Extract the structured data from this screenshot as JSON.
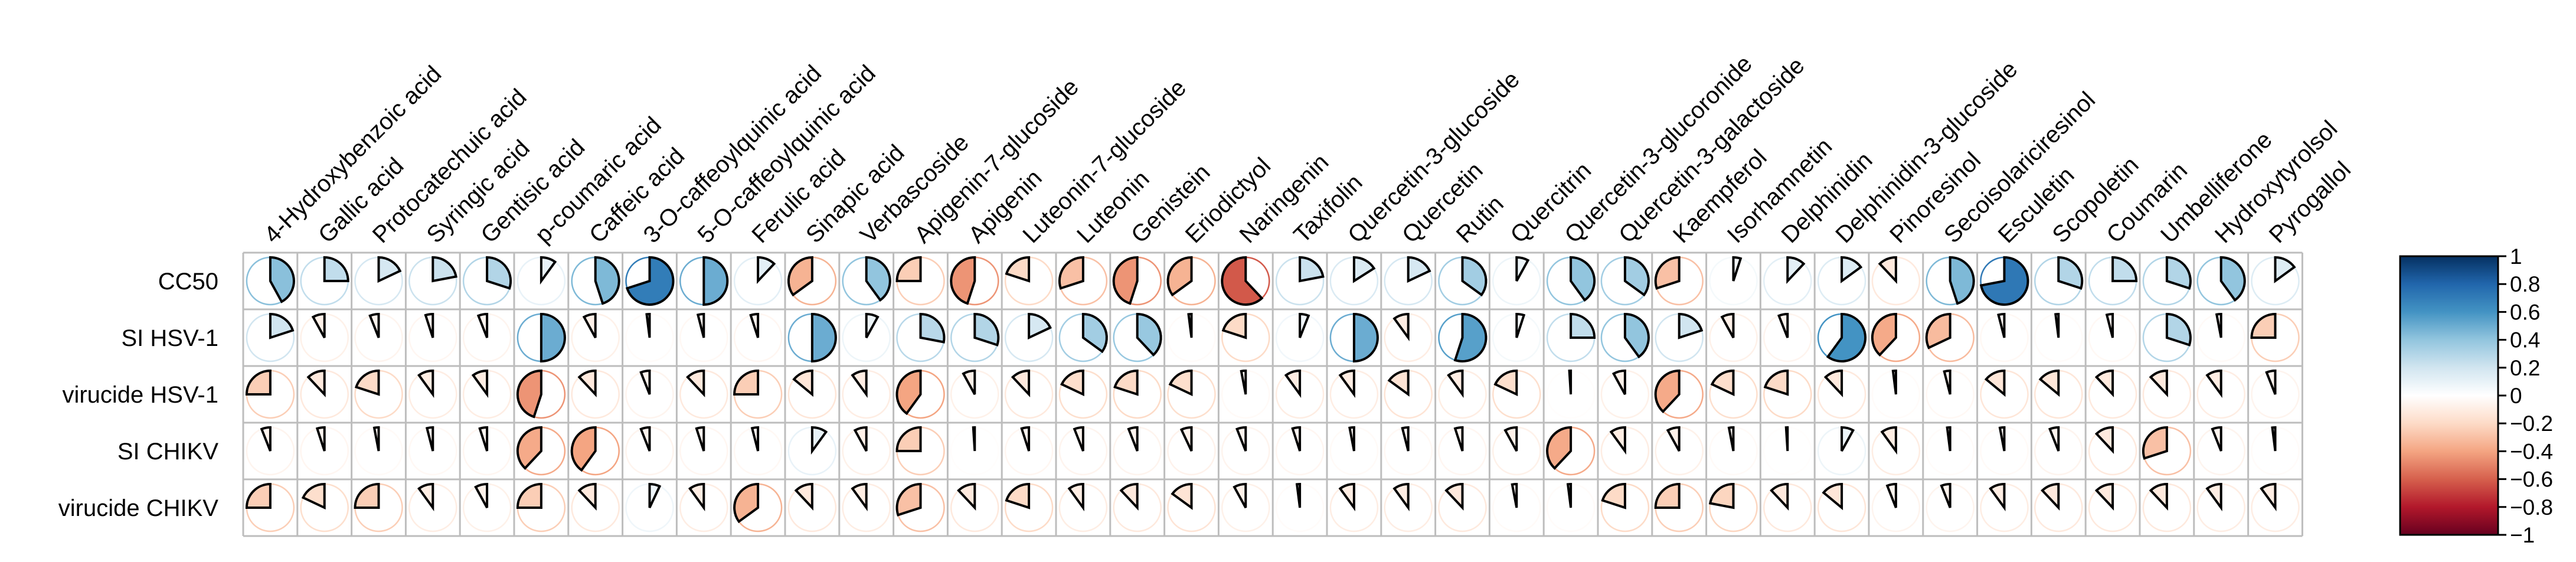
{
  "chart_data": {
    "type": "heatmap",
    "title": "",
    "glyph": "pie",
    "xlabels": [
      "4-Hydroxybenzoic acid",
      "Gallic acid",
      "Protocatechuic acid",
      "Syringic acid",
      "Gentisic acid",
      "p-coumaric acid",
      "Caffeic acid",
      "3-O-caffeoylquinic acid",
      "5-O-caffeoylquinic acid",
      "Ferulic acid",
      "Sinapic acid",
      "Verbascoside",
      "Apigenin-7-glucoside",
      "Apigenin",
      "Luteonin-7-glucoside",
      "Luteonin",
      "Genistein",
      "Eriodictyol",
      "Naringenin",
      "Taxifolin",
      "Quercetin-3-glucoside",
      "Quercetin",
      "Rutin",
      "Quercitrin",
      "Quercetin-3-glucoronide",
      "Quercetin-3-galactoside",
      "Kaempferol",
      "Isorhamnetin",
      "Delphinidin",
      "Delphinidin-3-glucoside",
      "Pinoresinol",
      "Secoisolariciresinol",
      "Esculetin",
      "Scopoletin",
      "Coumarin",
      "Umbelliferone",
      "Hydroxytyrolsol",
      "Pyrogallol"
    ],
    "ylabels": [
      "CC50",
      "SI HSV-1",
      "virucide HSV-1",
      "SI CHIKV",
      "virucide CHIKV"
    ],
    "values": [
      [
        0.42,
        0.25,
        0.18,
        0.22,
        0.3,
        0.1,
        0.45,
        0.7,
        0.5,
        0.12,
        -0.35,
        0.4,
        -0.25,
        -0.45,
        -0.2,
        -0.3,
        -0.45,
        -0.35,
        -0.62,
        0.22,
        0.16,
        0.18,
        0.35,
        0.08,
        0.4,
        0.35,
        -0.3,
        0.05,
        0.12,
        0.15,
        -0.12,
        0.45,
        0.72,
        0.3,
        0.25,
        0.3,
        0.4,
        0.15
      ],
      [
        0.2,
        -0.08,
        -0.06,
        -0.05,
        -0.06,
        0.5,
        -0.08,
        -0.02,
        -0.04,
        -0.05,
        0.5,
        0.08,
        0.28,
        0.3,
        0.18,
        0.35,
        0.38,
        -0.02,
        -0.2,
        0.06,
        0.5,
        -0.1,
        0.55,
        0.05,
        0.25,
        0.4,
        0.2,
        -0.08,
        -0.06,
        0.6,
        -0.38,
        -0.32,
        -0.04,
        -0.02,
        -0.04,
        0.3,
        -0.03,
        -0.25
      ],
      [
        -0.25,
        -0.12,
        -0.2,
        -0.1,
        -0.1,
        -0.45,
        -0.12,
        -0.06,
        -0.12,
        -0.25,
        -0.14,
        -0.1,
        -0.4,
        -0.08,
        -0.12,
        -0.18,
        -0.2,
        -0.18,
        -0.03,
        -0.1,
        -0.1,
        -0.15,
        -0.1,
        -0.18,
        -0.01,
        -0.08,
        -0.38,
        -0.18,
        -0.2,
        -0.12,
        -0.02,
        -0.04,
        -0.14,
        -0.14,
        -0.12,
        -0.12,
        -0.1,
        -0.06
      ],
      [
        -0.06,
        -0.05,
        -0.03,
        -0.04,
        -0.05,
        -0.38,
        -0.4,
        -0.06,
        -0.05,
        -0.04,
        0.1,
        -0.08,
        -0.25,
        -0.01,
        -0.05,
        -0.06,
        -0.06,
        -0.07,
        -0.06,
        -0.05,
        -0.03,
        -0.04,
        -0.05,
        -0.08,
        -0.38,
        -0.1,
        -0.08,
        -0.03,
        -0.01,
        0.08,
        -0.1,
        -0.02,
        -0.03,
        -0.06,
        -0.12,
        -0.3,
        -0.06,
        -0.02
      ],
      [
        -0.25,
        -0.18,
        -0.25,
        -0.1,
        -0.08,
        -0.25,
        -0.12,
        0.07,
        -0.1,
        -0.35,
        -0.12,
        -0.1,
        -0.3,
        -0.12,
        -0.2,
        -0.1,
        -0.12,
        -0.15,
        -0.08,
        -0.02,
        -0.1,
        -0.1,
        -0.12,
        -0.03,
        -0.02,
        -0.2,
        -0.25,
        -0.22,
        -0.12,
        -0.14,
        -0.06,
        -0.06,
        -0.1,
        -0.12,
        -0.12,
        -0.12,
        -0.1,
        -0.1
      ]
    ],
    "colorbar": {
      "range": [
        -1,
        1
      ],
      "ticks": [
        "1",
        "0.8",
        "0.6",
        "0.4",
        "0.2",
        "0",
        "−0.2",
        "−0.4",
        "−0.6",
        "−0.8",
        "−1"
      ]
    },
    "colors": {
      "negative": "#67001f",
      "zero": "#ffffff",
      "positive": "#053061",
      "grid": "#bdbdbd",
      "text": "#000000"
    }
  }
}
